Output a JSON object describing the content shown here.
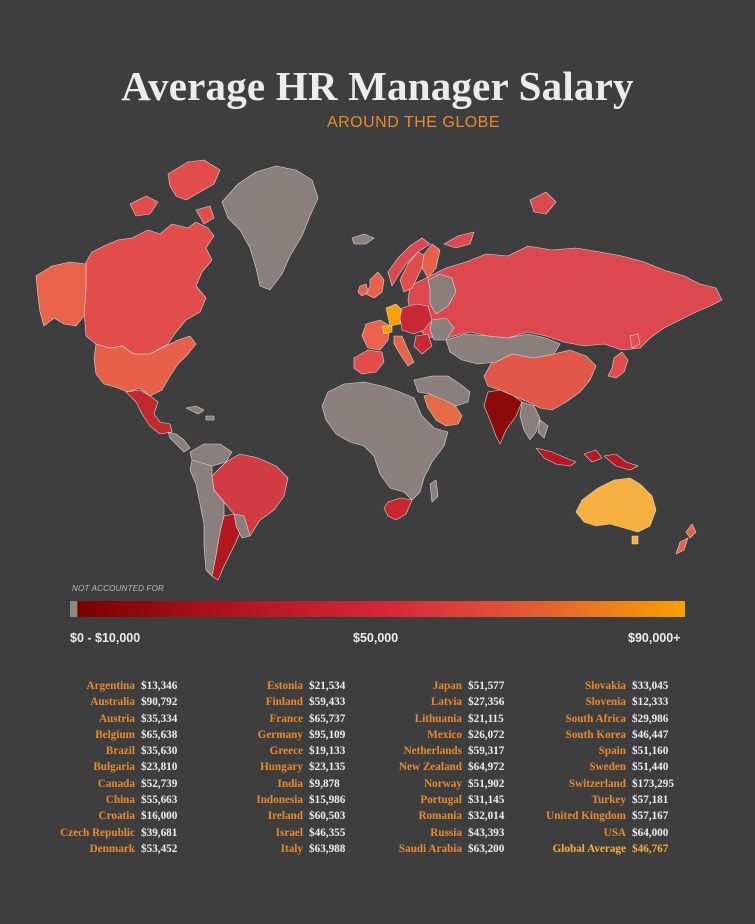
{
  "title": "Average HR Manager Salary",
  "subtitle": "AROUND THE GLOBE",
  "legend": {
    "not_accounted": "NOT ACCOUNTED FOR",
    "min_label": "$0 - $10,000",
    "mid_label": "$50,000",
    "max_label": "$90,000+",
    "colors": {
      "not_accounted": "#8a8a8a",
      "low": "#7a0000",
      "mid": "#d8283a",
      "high": "#f6a100"
    }
  },
  "colors": {
    "background": "#3e3e3e",
    "accent": "#e98a2e",
    "highlight": "#f4b23a"
  },
  "map_regions": [
    {
      "name": "Canada",
      "color": "#e24c4a"
    },
    {
      "name": "Alaska",
      "color": "#e8634a"
    },
    {
      "name": "USA",
      "color": "#e8604a"
    },
    {
      "name": "Greenland",
      "color": "#8a7f7d"
    },
    {
      "name": "Mexico",
      "color": "#c02a2e"
    },
    {
      "name": "Central America",
      "color": "#8a7f7d"
    },
    {
      "name": "Caribbean",
      "color": "#8a7f7d"
    },
    {
      "name": "Colombia-Venezuela",
      "color": "#8a7f7d"
    },
    {
      "name": "Brazil",
      "color": "#d23a44"
    },
    {
      "name": "Peru-Bolivia-Chile",
      "color": "#8a7f7d"
    },
    {
      "name": "Argentina",
      "color": "#b2181e"
    },
    {
      "name": "Uruguay-Paraguay",
      "color": "#8a7f7d"
    },
    {
      "name": "Africa",
      "color": "#8a7f7d"
    },
    {
      "name": "South Africa",
      "color": "#c8262c"
    },
    {
      "name": "Saudi Arabia",
      "color": "#e66a45"
    },
    {
      "name": "Middle East",
      "color": "#8a7f7d"
    },
    {
      "name": "Russia",
      "color": "#dd4850"
    },
    {
      "name": "China",
      "color": "#e25848"
    },
    {
      "name": "Kazakhstan-Mongolia",
      "color": "#8a7f7d"
    },
    {
      "name": "India",
      "color": "#8c0a0a"
    },
    {
      "name": "Southeast Asia",
      "color": "#8a7f7d"
    },
    {
      "name": "Indonesia",
      "color": "#b81822"
    },
    {
      "name": "Japan",
      "color": "#e24c4a"
    },
    {
      "name": "Australia",
      "color": "#f6b040"
    },
    {
      "name": "New Zealand",
      "color": "#e8604a"
    },
    {
      "name": "Iceland",
      "color": "#8a7f7d"
    },
    {
      "name": "United Kingdom",
      "color": "#e8604a"
    },
    {
      "name": "Ireland",
      "color": "#e8604a"
    },
    {
      "name": "Norway",
      "color": "#dd4850"
    },
    {
      "name": "Sweden",
      "color": "#e24c4a"
    },
    {
      "name": "Finland",
      "color": "#e8604a"
    },
    {
      "name": "Spain-Portugal",
      "color": "#e24c4a"
    },
    {
      "name": "France",
      "color": "#e8634a"
    },
    {
      "name": "Germany",
      "color": "#f6a100"
    },
    {
      "name": "Switzerland",
      "color": "#f6a100"
    },
    {
      "name": "Italy",
      "color": "#e8634a"
    },
    {
      "name": "Central Europe",
      "color": "#c82832"
    },
    {
      "name": "Eastern Europe",
      "color": "#8a7f7d"
    }
  ],
  "salaries": [
    [
      {
        "country": "Argentina",
        "salary": "$13,346"
      },
      {
        "country": "Australia",
        "salary": "$90,792"
      },
      {
        "country": "Austria",
        "salary": "$35,334"
      },
      {
        "country": "Belgium",
        "salary": "$65,638"
      },
      {
        "country": "Brazil",
        "salary": "$35,630"
      },
      {
        "country": "Bulgaria",
        "salary": "$23,810"
      },
      {
        "country": "Canada",
        "salary": "$52,739"
      },
      {
        "country": "China",
        "salary": "$55,663"
      },
      {
        "country": "Croatia",
        "salary": "$16,000"
      },
      {
        "country": "Czech Republic",
        "salary": "$39,681"
      },
      {
        "country": "Denmark",
        "salary": "$53,452"
      }
    ],
    [
      {
        "country": "Estonia",
        "salary": "$21,534"
      },
      {
        "country": "Finland",
        "salary": "$59,433"
      },
      {
        "country": "France",
        "salary": "$65,737"
      },
      {
        "country": "Germany",
        "salary": "$95,109"
      },
      {
        "country": "Greece",
        "salary": "$19,133"
      },
      {
        "country": "Hungary",
        "salary": "$23,135"
      },
      {
        "country": "India",
        "salary": "$9,878"
      },
      {
        "country": "Indonesia",
        "salary": "$15,986"
      },
      {
        "country": "Ireland",
        "salary": "$60,503"
      },
      {
        "country": "Israel",
        "salary": "$46,355"
      },
      {
        "country": "Italy",
        "salary": "$63,988"
      }
    ],
    [
      {
        "country": "Japan",
        "salary": "$51,577"
      },
      {
        "country": "Latvia",
        "salary": "$27,356"
      },
      {
        "country": "Lithuania",
        "salary": "$21,115"
      },
      {
        "country": "Mexico",
        "salary": "$26,072"
      },
      {
        "country": "Netherlands",
        "salary": "$59,317"
      },
      {
        "country": "New Zealand",
        "salary": "$64,972"
      },
      {
        "country": "Norway",
        "salary": "$51,902"
      },
      {
        "country": "Portugal",
        "salary": "$31,145"
      },
      {
        "country": "Romania",
        "salary": "$32,014"
      },
      {
        "country": "Russia",
        "salary": "$43,393"
      },
      {
        "country": "Saudi Arabia",
        "salary": "$63,200"
      }
    ],
    [
      {
        "country": "Slovakia",
        "salary": "$33,045"
      },
      {
        "country": "Slovenia",
        "salary": "$12,333"
      },
      {
        "country": "South Africa",
        "salary": "$29,986"
      },
      {
        "country": "South Korea",
        "salary": "$46,447"
      },
      {
        "country": "Spain",
        "salary": "$51,160"
      },
      {
        "country": "Sweden",
        "salary": "$51,440"
      },
      {
        "country": "Switzerland",
        "salary": "$173,295"
      },
      {
        "country": "Turkey",
        "salary": "$57,181"
      },
      {
        "country": "United Kingdom",
        "salary": "$57,167"
      },
      {
        "country": "USA",
        "salary": "$64,000"
      },
      {
        "country": "Global Average",
        "salary": "$46,767"
      }
    ]
  ]
}
